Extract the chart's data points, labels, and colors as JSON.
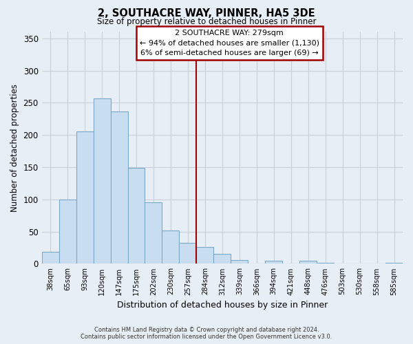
{
  "title": "2, SOUTHACRE WAY, PINNER, HA5 3DE",
  "subtitle": "Size of property relative to detached houses in Pinner",
  "xlabel": "Distribution of detached houses by size in Pinner",
  "ylabel": "Number of detached properties",
  "categories": [
    "38sqm",
    "65sqm",
    "93sqm",
    "120sqm",
    "147sqm",
    "175sqm",
    "202sqm",
    "230sqm",
    "257sqm",
    "284sqm",
    "312sqm",
    "339sqm",
    "366sqm",
    "394sqm",
    "421sqm",
    "448sqm",
    "476sqm",
    "503sqm",
    "530sqm",
    "558sqm",
    "585sqm"
  ],
  "values": [
    19,
    100,
    205,
    257,
    236,
    149,
    95,
    52,
    33,
    26,
    15,
    6,
    0,
    5,
    0,
    5,
    1,
    0,
    0,
    0,
    1
  ],
  "bar_color": "#c8ddef",
  "bar_edge_color": "#7aaac8",
  "grid_color": "#c8d0dc",
  "vline_color": "#a00000",
  "annotation_title": "2 SOUTHACRE WAY: 279sqm",
  "annotation_line1": "← 94% of detached houses are smaller (1,130)",
  "annotation_line2": "6% of semi-detached houses are larger (69) →",
  "annotation_box_color": "white",
  "annotation_box_edge": "#a00000",
  "ylim": [
    0,
    360
  ],
  "yticks": [
    0,
    50,
    100,
    150,
    200,
    250,
    300,
    350
  ],
  "footer1": "Contains HM Land Registry data © Crown copyright and database right 2024.",
  "footer2": "Contains public sector information licensed under the Open Government Licence v3.0.",
  "background_color": "#e8eef5"
}
